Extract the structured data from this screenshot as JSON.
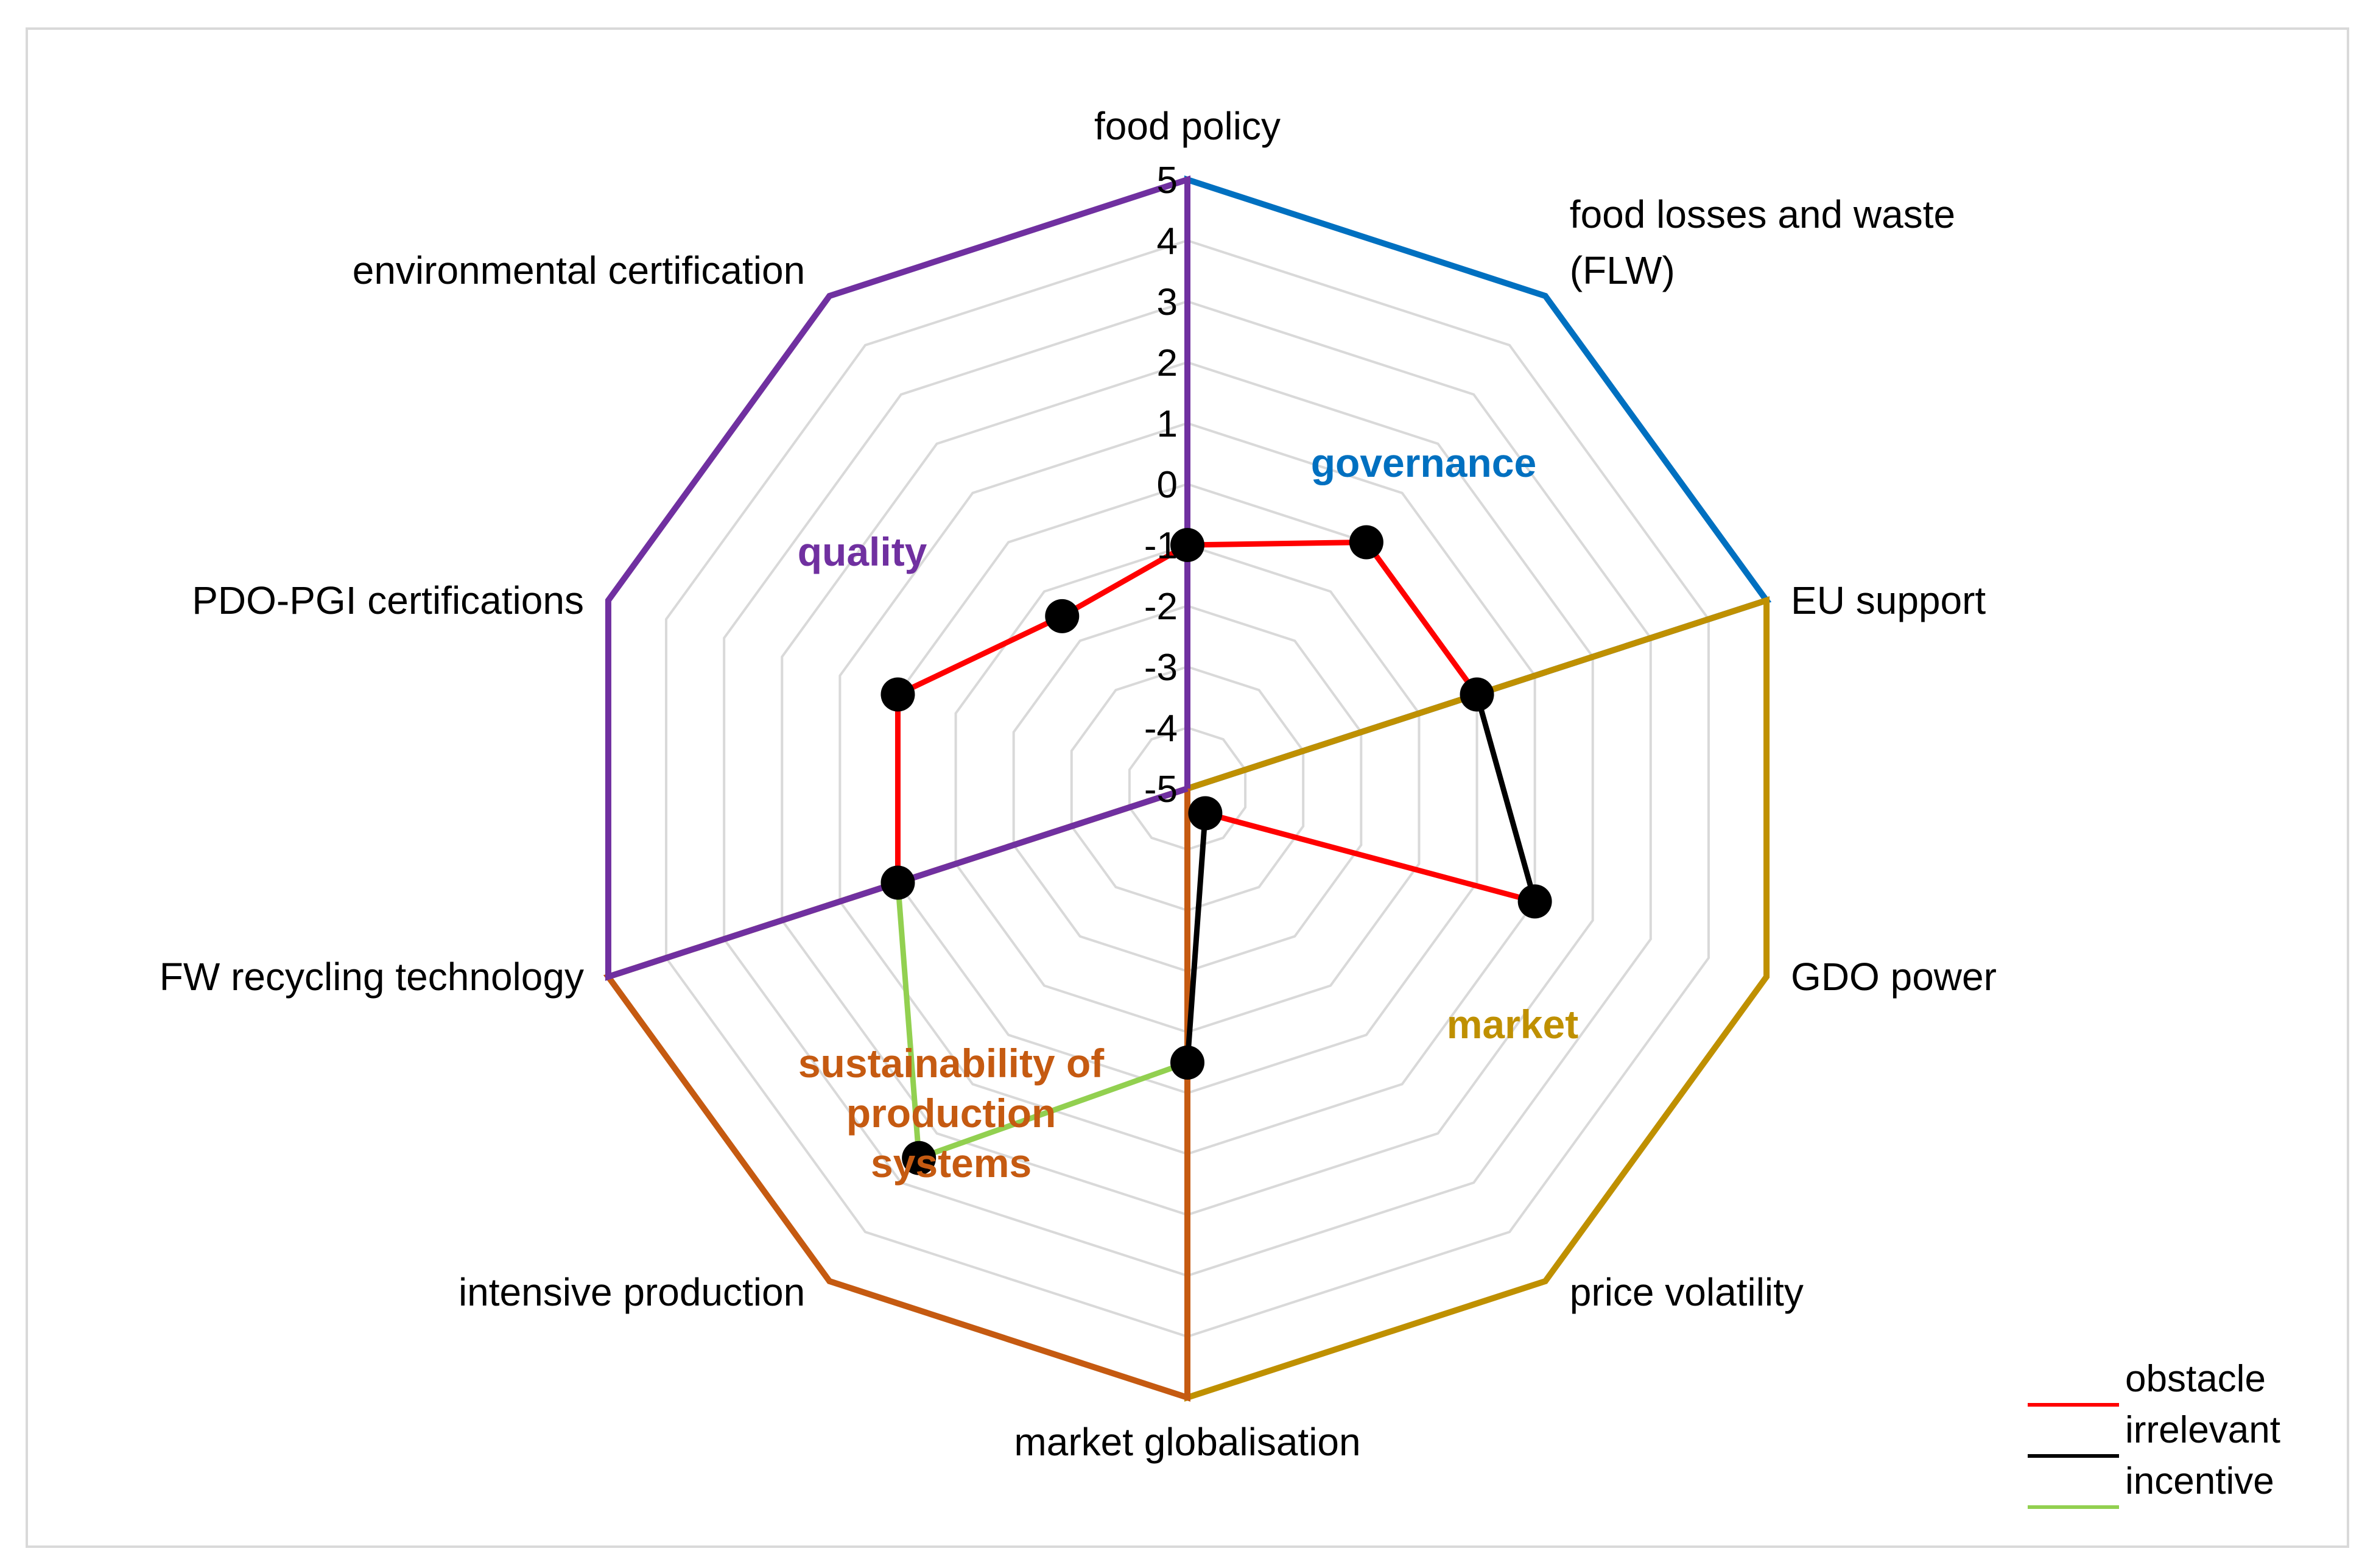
{
  "chart_data": {
    "type": "radar",
    "title": "",
    "rlim": [
      -5,
      5
    ],
    "ticks": [
      "5",
      "4",
      "3",
      "2",
      "1",
      "0",
      "-1",
      "-2",
      "-3",
      "-4",
      "-5"
    ],
    "categories": [
      {
        "label": [
          "food policy"
        ]
      },
      {
        "label": [
          "food losses and waste",
          "(FLW)"
        ]
      },
      {
        "label": [
          "EU support"
        ]
      },
      {
        "label": [
          "GDO power"
        ]
      },
      {
        "label": [
          "price volatility"
        ]
      },
      {
        "label": [
          "market globalisation"
        ]
      },
      {
        "label": [
          "intensive production"
        ]
      },
      {
        "label": [
          "FW recycling technology"
        ]
      },
      {
        "label": [
          "PDO-PGI certifications"
        ]
      },
      {
        "label": [
          "environmental certification"
        ]
      }
    ],
    "values": [
      -1,
      0,
      0,
      1,
      -4.5,
      -0.5,
      2.5,
      0,
      0,
      -1.5
    ],
    "segments": [
      {
        "from": 0,
        "to": 1,
        "status": "obstacle"
      },
      {
        "from": 1,
        "to": 2,
        "status": "obstacle"
      },
      {
        "from": 2,
        "to": 3,
        "status": "irrelevant"
      },
      {
        "from": 3,
        "to": 4,
        "status": "obstacle"
      },
      {
        "from": 4,
        "to": 5,
        "status": "irrelevant"
      },
      {
        "from": 5,
        "to": 6,
        "status": "incentive"
      },
      {
        "from": 6,
        "to": 7,
        "status": "incentive"
      },
      {
        "from": 7,
        "to": 8,
        "status": "obstacle"
      },
      {
        "from": 8,
        "to": 9,
        "status": "obstacle"
      },
      {
        "from": 9,
        "to": 0,
        "status": "obstacle"
      }
    ],
    "groups": [
      {
        "name": [
          "governance"
        ],
        "axes": [
          0,
          1,
          2
        ],
        "color": "#0070c0"
      },
      {
        "name": [
          "market"
        ],
        "axes": [
          2,
          3,
          4,
          5
        ],
        "color": "#bf9000"
      },
      {
        "name": [
          "sustainability of",
          "production",
          "systems"
        ],
        "axes": [
          5,
          6,
          7
        ],
        "color": "#c55a11"
      },
      {
        "name": [
          "quality"
        ],
        "axes": [
          7,
          8,
          9,
          0
        ],
        "color": "#7030a0"
      }
    ],
    "legend": [
      {
        "label": "obstacle",
        "color": "#ff0000"
      },
      {
        "label": "irrelevant",
        "color": "#000000"
      },
      {
        "label": "incentive",
        "color": "#92d050"
      }
    ],
    "legend_position": "bottom-right",
    "grid": true
  }
}
